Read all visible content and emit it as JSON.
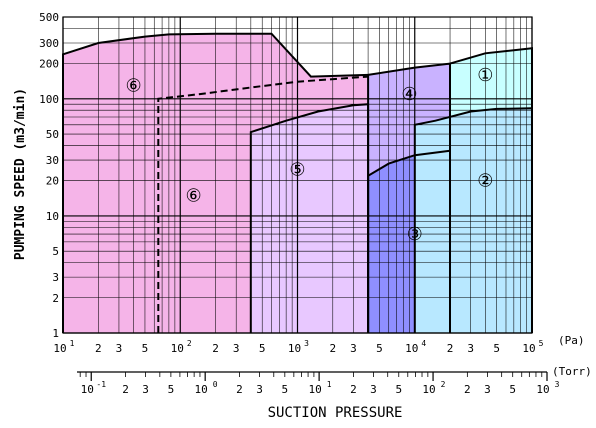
{
  "chart_data": {
    "type": "area",
    "ylabel": "PUMPING SPEED (m3/min)",
    "xlabel": "SUCTION PRESSURE",
    "x_scale": "log",
    "y_scale": "log",
    "xlim_pa": [
      10,
      100000
    ],
    "ylim": [
      1,
      500
    ],
    "grid": true,
    "pa_axis": {
      "unit_label": "(Pa)",
      "decades": [
        {
          "value": 10,
          "label": "10",
          "exp": "1"
        },
        {
          "value": 100,
          "label": "10",
          "exp": "2"
        },
        {
          "value": 1000,
          "label": "10",
          "exp": "3"
        },
        {
          "value": 10000,
          "label": "10",
          "exp": "4"
        },
        {
          "value": 100000,
          "label": "10",
          "exp": "5"
        }
      ],
      "minor_labels": [
        "2",
        "3",
        "5"
      ]
    },
    "torr_axis": {
      "unit_label": "(Torr)",
      "xlim_torr": [
        0.075,
        1000
      ],
      "decades": [
        {
          "value": 0.1,
          "label": "10",
          "exp": "-1"
        },
        {
          "value": 1,
          "label": "10",
          "exp": "0"
        },
        {
          "value": 10,
          "label": "10",
          "exp": "1"
        },
        {
          "value": 100,
          "label": "10",
          "exp": "2"
        },
        {
          "value": 1000,
          "label": "10",
          "exp": "3"
        }
      ],
      "minor_labels": [
        "2",
        "3",
        "5"
      ]
    },
    "y_ticks": [
      {
        "value": 1,
        "label": "1"
      },
      {
        "value": 2,
        "label": "2"
      },
      {
        "value": 3,
        "label": "3"
      },
      {
        "value": 5,
        "label": "5"
      },
      {
        "value": 10,
        "label": "10"
      },
      {
        "value": 20,
        "label": "20"
      },
      {
        "value": 30,
        "label": "30"
      },
      {
        "value": 50,
        "label": "50"
      },
      {
        "value": 100,
        "label": "100"
      },
      {
        "value": 200,
        "label": "200"
      },
      {
        "value": 300,
        "label": "300"
      },
      {
        "value": 500,
        "label": "500"
      }
    ],
    "regions": [
      {
        "id": "6",
        "label": "⑥",
        "color": "#f5b4e8",
        "points": [
          [
            10,
            240
          ],
          [
            20,
            300
          ],
          [
            50,
            340
          ],
          [
            80,
            355
          ],
          [
            200,
            360
          ],
          [
            600,
            360
          ],
          [
            1300,
            155
          ],
          [
            4000,
            160
          ]
        ],
        "label_positions": [
          [
            40,
            130
          ],
          [
            130,
            15
          ]
        ]
      },
      {
        "id": "5",
        "label": "⑤",
        "color": "#e8c8ff",
        "points": [
          [
            400,
            52
          ],
          [
            800,
            65
          ],
          [
            1500,
            78
          ],
          [
            3000,
            88
          ],
          [
            4000,
            90
          ]
        ],
        "label_positions": [
          [
            1000,
            25
          ]
        ]
      },
      {
        "id": "4",
        "label": "④",
        "color": "#c9b2ff",
        "points": [
          [
            4000,
            160
          ],
          [
            10000,
            185
          ],
          [
            20000,
            200
          ]
        ],
        "label_positions": [
          [
            9000,
            110
          ]
        ]
      },
      {
        "id": "3",
        "label": "③",
        "color": "#8f8fff",
        "points": [
          [
            4000,
            22
          ],
          [
            6000,
            28
          ],
          [
            10000,
            33
          ],
          [
            20000,
            36
          ]
        ],
        "label_positions": [
          [
            10000,
            7
          ]
        ]
      },
      {
        "id": "1",
        "label": "①",
        "color": "#c8ffff",
        "points": [
          [
            20000,
            200
          ],
          [
            40000,
            245
          ],
          [
            100000,
            270
          ]
        ],
        "label_positions": [
          [
            40000,
            160
          ]
        ]
      },
      {
        "id": "2",
        "label": "②",
        "color": "#b8e8ff",
        "points": [
          [
            10000,
            60
          ],
          [
            15000,
            65
          ],
          [
            30000,
            78
          ],
          [
            50000,
            82
          ],
          [
            100000,
            83
          ]
        ],
        "label_positions": [
          [
            40000,
            20
          ]
        ]
      }
    ],
    "dashed_line": {
      "points": [
        [
          65,
          1
        ],
        [
          65,
          100
        ],
        [
          150,
          110
        ],
        [
          400,
          125
        ],
        [
          1000,
          140
        ],
        [
          4000,
          155
        ]
      ]
    }
  }
}
